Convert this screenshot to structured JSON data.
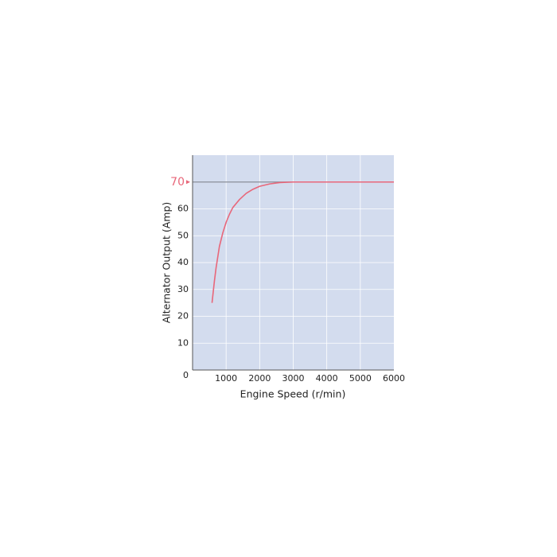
{
  "chart_data": {
    "type": "line",
    "xlabel": "Engine Speed (r/min)",
    "ylabel": "Alternator Output (Amp)",
    "x": [
      580,
      650,
      700,
      750,
      800,
      900,
      1000,
      1100,
      1200,
      1400,
      1600,
      1800,
      2000,
      2300,
      2600,
      3000,
      4000,
      5000,
      6000
    ],
    "series": [
      {
        "name": "Alternator output",
        "color": "#e8677a",
        "values": [
          25,
          33,
          38,
          42,
          46,
          51,
          55,
          58,
          60.5,
          63.5,
          65.8,
          67.3,
          68.4,
          69.3,
          69.8,
          70,
          70,
          70,
          70
        ]
      }
    ],
    "xlim": [
      0,
      6000
    ],
    "xticks": [
      1000,
      2000,
      3000,
      4000,
      5000,
      6000
    ],
    "ylim": [
      0,
      80
    ],
    "yticks": [
      0,
      10,
      20,
      30,
      40,
      50,
      60
    ],
    "reference_line": {
      "value": 70,
      "color": "#e8677a",
      "line_color": "#8a8f99"
    },
    "grid": true,
    "background": "#d3dcee"
  }
}
